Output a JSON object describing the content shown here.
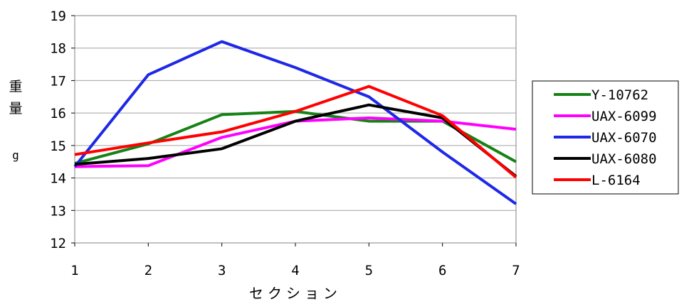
{
  "chart_data": {
    "type": "line",
    "title": "",
    "xlabel": "セクション",
    "ylabel_chars": [
      "重",
      "量",
      "g"
    ],
    "x": [
      1,
      2,
      3,
      4,
      5,
      6,
      7
    ],
    "xlim": [
      1,
      7
    ],
    "ylim": [
      12,
      19
    ],
    "yticks": [
      12,
      13,
      14,
      15,
      16,
      17,
      18,
      19
    ],
    "xticks": [
      1,
      2,
      3,
      4,
      5,
      6,
      7
    ],
    "grid": "horizontal",
    "legend_position": "right",
    "series": [
      {
        "name": "Y-10762",
        "color": "#168216",
        "values": [
          14.45,
          15.05,
          15.95,
          16.05,
          15.75,
          15.75,
          14.5
        ]
      },
      {
        "name": "UAX-6099",
        "color": "#ff00ff",
        "values": [
          14.35,
          14.38,
          15.25,
          15.75,
          15.85,
          15.75,
          15.5
        ]
      },
      {
        "name": "UAX-6070",
        "color": "#1e28e6",
        "values": [
          14.35,
          17.18,
          18.2,
          17.4,
          16.5,
          14.8,
          13.2
        ]
      },
      {
        "name": "UAX-6080",
        "color": "#000000",
        "values": [
          14.42,
          14.6,
          14.9,
          15.75,
          16.25,
          15.85,
          14.05
        ]
      },
      {
        "name": "L-6164",
        "color": "#ff0000",
        "values": [
          14.72,
          15.08,
          15.42,
          16.05,
          16.82,
          15.92,
          14.02
        ]
      }
    ]
  }
}
